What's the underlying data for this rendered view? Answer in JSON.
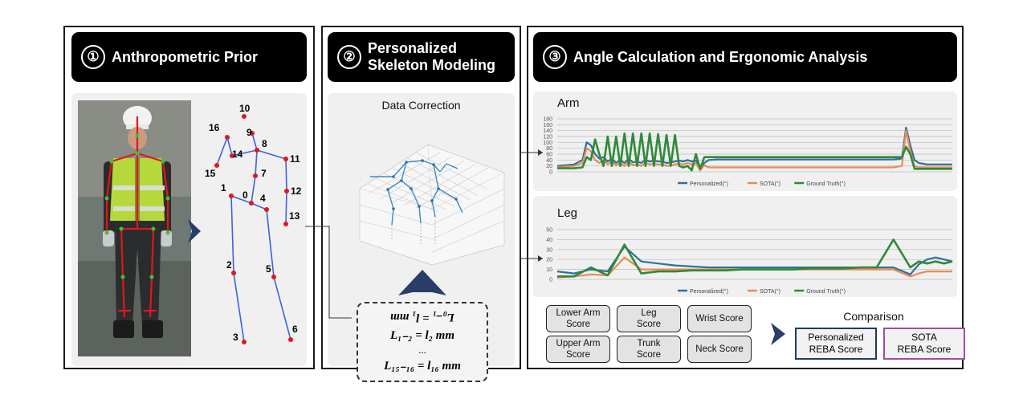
{
  "panel1": {
    "number": "①",
    "title": "Anthropometric Prior",
    "keypoints": [
      "0",
      "1",
      "2",
      "3",
      "4",
      "5",
      "6",
      "7",
      "8",
      "9",
      "10",
      "11",
      "12",
      "13",
      "14",
      "15",
      "16"
    ]
  },
  "panel2": {
    "number": "②",
    "title_line1": "Personalized",
    "title_line2": "Skeleton Modeling",
    "data_correction": "Data Correction",
    "equations": [
      "L₀₋₁ = l₁ mm",
      "L₁₋₂ = l₂ mm",
      "...",
      "L₁₅₋₁₆ = l₁₆ mm"
    ]
  },
  "panel3": {
    "number": "③",
    "title": "Angle Calculation and Ergonomic Analysis",
    "comparison": "Comparison",
    "scores": [
      {
        "l1": "Lower Arm",
        "l2": "Score"
      },
      {
        "l1": "Leg",
        "l2": "Score"
      },
      {
        "l1": "Wrist Score",
        "l2": ""
      },
      {
        "l1": "Upper Arm",
        "l2": "Score"
      },
      {
        "l1": "Trunk",
        "l2": "Score"
      },
      {
        "l1": "Neck Score",
        "l2": ""
      }
    ],
    "reba": [
      {
        "l1": "Personalized",
        "l2": "REBA Score"
      },
      {
        "l1": "SOTA",
        "l2": "REBA Score"
      }
    ]
  },
  "colors": {
    "personalized": "#2e6f9e",
    "sota": "#ee8a50",
    "ground_truth": "#2f8a3a",
    "skeleton_line": "#3a63e0",
    "keypoint": "#e3161b",
    "reba_personalized_border": "#1f3a5f",
    "reba_sota_border": "#a24aa6"
  },
  "chart_data": [
    {
      "type": "line",
      "title": "Arm",
      "ylim": [
        0,
        180
      ],
      "yticks": [
        0,
        20,
        40,
        60,
        80,
        100,
        120,
        140,
        160,
        180
      ],
      "x": [
        0,
        10,
        20,
        30,
        35,
        40,
        45,
        50,
        55,
        60,
        65,
        70,
        75,
        80,
        85,
        90,
        95,
        100,
        105,
        110,
        115,
        120,
        125,
        130,
        135,
        140,
        145,
        150,
        155,
        160,
        165,
        170,
        175,
        180,
        190,
        200,
        210,
        220,
        230,
        240,
        250,
        260,
        270,
        280,
        290,
        300,
        310,
        320,
        330,
        340,
        350,
        360,
        370,
        380,
        390,
        400,
        410,
        415,
        420,
        425,
        430,
        440,
        450,
        460,
        470
      ],
      "series": [
        {
          "name": "Personalized(°)",
          "values": [
            20,
            22,
            25,
            40,
            100,
            90,
            60,
            45,
            50,
            35,
            45,
            30,
            40,
            30,
            45,
            32,
            35,
            30,
            40,
            35,
            38,
            35,
            35,
            30,
            32,
            35,
            38,
            35,
            40,
            35,
            38,
            10,
            30,
            40,
            42,
            42,
            42,
            42,
            42,
            42,
            42,
            42,
            42,
            42,
            42,
            42,
            42,
            42,
            42,
            42,
            42,
            42,
            42,
            42,
            42,
            42,
            45,
            150,
            90,
            40,
            30,
            25,
            25,
            25,
            25
          ]
        },
        {
          "name": "SOTA(°)",
          "values": [
            15,
            18,
            20,
            30,
            80,
            70,
            40,
            30,
            40,
            25,
            35,
            22,
            30,
            20,
            35,
            22,
            25,
            20,
            30,
            25,
            28,
            25,
            25,
            20,
            22,
            25,
            28,
            25,
            30,
            25,
            28,
            5,
            22,
            15,
            15,
            15,
            15,
            15,
            15,
            15,
            15,
            15,
            15,
            15,
            15,
            15,
            15,
            15,
            15,
            15,
            15,
            15,
            15,
            15,
            15,
            15,
            20,
            140,
            70,
            20,
            15,
            15,
            15,
            15,
            15
          ]
        },
        {
          "name": "Ground Truth(°)",
          "values": [
            12,
            12,
            12,
            15,
            50,
            40,
            110,
            60,
            20,
            120,
            20,
            120,
            20,
            130,
            20,
            130,
            20,
            130,
            20,
            130,
            20,
            128,
            20,
            125,
            20,
            125,
            20,
            15,
            20,
            5,
            60,
            10,
            50,
            50,
            50,
            50,
            50,
            50,
            50,
            50,
            50,
            50,
            50,
            50,
            50,
            50,
            50,
            50,
            50,
            50,
            50,
            50,
            50,
            50,
            50,
            50,
            50,
            85,
            60,
            10,
            10,
            10,
            10,
            10,
            10
          ]
        }
      ]
    },
    {
      "type": "line",
      "title": "Leg",
      "ylim": [
        0,
        50
      ],
      "yticks": [
        0,
        10,
        20,
        30,
        40,
        50
      ],
      "x": [
        0,
        20,
        40,
        60,
        80,
        100,
        120,
        140,
        160,
        180,
        200,
        220,
        240,
        260,
        280,
        300,
        320,
        340,
        360,
        380,
        400,
        420,
        430,
        440,
        450,
        460,
        470
      ],
      "series": [
        {
          "name": "Personalized(°)",
          "values": [
            8,
            6,
            10,
            8,
            33,
            18,
            16,
            14,
            13,
            12,
            12,
            12,
            12,
            12,
            12,
            12,
            12,
            12,
            12,
            12,
            12,
            5,
            15,
            20,
            22,
            20,
            18
          ]
        },
        {
          "name": "SOTA(°)",
          "values": [
            2,
            3,
            5,
            4,
            22,
            10,
            10,
            10,
            10,
            10,
            10,
            10,
            10,
            10,
            10,
            10,
            10,
            10,
            10,
            10,
            10,
            3,
            6,
            8,
            8,
            8,
            8
          ]
        },
        {
          "name": "Ground Truth(°)",
          "values": [
            3,
            3,
            12,
            4,
            35,
            6,
            8,
            8,
            9,
            9,
            9,
            10,
            10,
            10,
            10,
            11,
            11,
            11,
            12,
            12,
            40,
            12,
            18,
            16,
            18,
            16,
            18
          ]
        }
      ]
    }
  ]
}
